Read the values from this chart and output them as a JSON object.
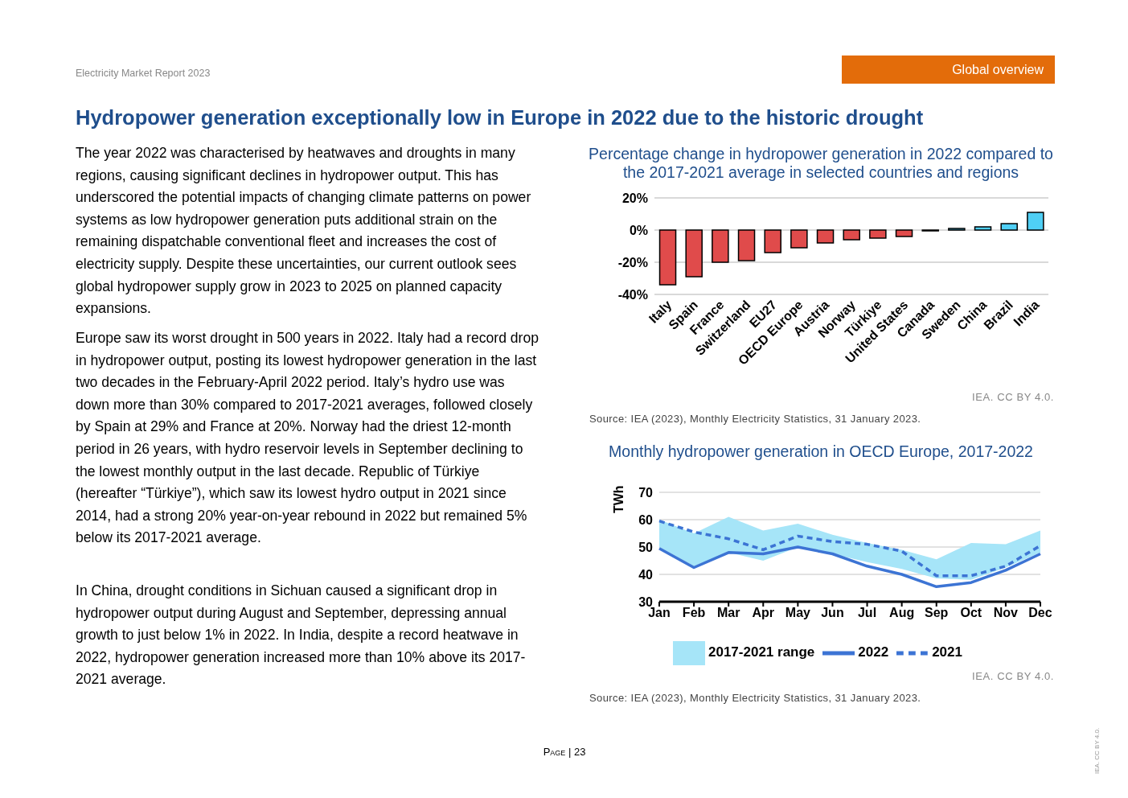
{
  "chart_data": [
    {
      "type": "other",
      "title": "Hydropower generation exceptionally low in Europe in 2022 due to the historic drought",
      "annotations": [
        "Electricity Market Report 2023",
        "Global overview",
        "The year 2022 was characterised by heatwaves and droughts in many regions, causing significant declines in hydropower output. This has underscored the potential impacts of changing climate patterns on power systems as low hydropower generation puts additional strain on the remaining dispatchable conventional fleet and increases the cost of electricity supply. Despite these uncertainties, our current outlook sees global hydropower supply grow in 2023 to 2025 on planned capacity expansions.",
        "Europe saw its worst drought in 500 years in 2022. Italy had a record drop in hydropower output, posting its lowest hydropower generation in the last two decades in the February-April 2022 period. Italy’s hydro use was down more than 30% compared to 2017-2021 averages, followed closely by Spain at 29% and France at 20%. Norway had the driest 12-month period in 26 years, with hydro reservoir levels in September declining to the lowest monthly output in the last decade. Republic of Türkiye (hereafter “Türkiye”), which saw its lowest hydro output in 2021 since 2014, had a strong 20% year-on-year rebound in 2022 but remained 5% below its 2017-2021 average.",
        "In China, drought conditions in Sichuan caused a significant drop in hydropower output during August and September, depressing annual growth to just below 1% in 2022. In India, despite a record heatwave in 2022, hydropower generation increased more than 10% above its 2017-2021 average.",
        "Page | 23",
        "IEA. CC BY 4.0."
      ]
    },
    {
      "type": "bar",
      "title": "Percentage change in hydropower generation in 2022 compared to the 2017-2021 average in selected countries and regions",
      "categories": [
        "Italy",
        "Spain",
        "France",
        "Switzerland",
        "EU27",
        "OECD Europe",
        "Austria",
        "Norway",
        "Türkiye",
        "United States",
        "Canada",
        "Sweden",
        "China",
        "Brazil",
        "India"
      ],
      "values": [
        -34,
        -29,
        -20,
        -19,
        -14,
        -11,
        -8,
        -6,
        -5,
        -4,
        -0.5,
        1,
        2,
        4,
        11
      ],
      "colors": [
        "#e04b4b",
        "#e04b4b",
        "#e04b4b",
        "#e04b4b",
        "#e04b4b",
        "#e04b4b",
        "#e04b4b",
        "#e04b4b",
        "#e04b4b",
        "#e04b4b",
        "#e04b4b",
        "#4fcff5",
        "#4fcff5",
        "#4fcff5",
        "#4fcff5"
      ],
      "ylim": [
        -40,
        20
      ],
      "yticks": [
        {
          "value": -40,
          "label": "-40%"
        },
        {
          "value": -20,
          "label": "-20%"
        },
        {
          "value": 0,
          "label": "0%"
        },
        {
          "value": 20,
          "label": "20%"
        }
      ],
      "grid": "y",
      "legend": false,
      "annotations": [
        "IEA. CC BY 4.0.",
        "Source: IEA (2023), Monthly Electricity Statistics, 31 January 2023."
      ]
    },
    {
      "type": "line",
      "title": "Monthly hydropower generation in OECD Europe, 2017-2022",
      "categories": [
        "Jan",
        "Feb",
        "Mar",
        "Apr",
        "May",
        "Jun",
        "Jul",
        "Aug",
        "Sep",
        "Oct",
        "Nov",
        "Dec"
      ],
      "ylabel": "TWh",
      "ylim": [
        30,
        70
      ],
      "yticks": [
        30,
        40,
        50,
        60,
        70
      ],
      "grid": "y",
      "legend": "bottom",
      "marker": "none",
      "series": [
        {
          "name": "2017-2021 range",
          "type": "area",
          "color": "#a6e5f8",
          "values": [
            null,
            null,
            null,
            null,
            null,
            null,
            null,
            null,
            null,
            null,
            null,
            null
          ],
          "lower": [
            50,
            43,
            48,
            45,
            50,
            47.5,
            44.5,
            42,
            38.5,
            38,
            42.5,
            48
          ],
          "upper": [
            60,
            55,
            61,
            56,
            58.5,
            54.5,
            51.5,
            49,
            45.5,
            51.5,
            51,
            56
          ]
        },
        {
          "name": "2022",
          "type": "line",
          "color": "#3c74d4",
          "line_style": "solid",
          "values": [
            49.5,
            42.5,
            48,
            47.5,
            50,
            47.5,
            43,
            40,
            35.5,
            37,
            41.5,
            47.5
          ]
        },
        {
          "name": "2021",
          "type": "line",
          "color": "#3c74d4",
          "line_style": "dashed",
          "values": [
            59.5,
            55.5,
            53,
            49,
            54,
            52,
            51,
            48.5,
            39.5,
            39.5,
            43,
            50.5
          ]
        }
      ],
      "annotations": [
        "IEA. CC BY 4.0.",
        "Source: IEA (2023), Monthly Electricity Statistics, 31 January 2023."
      ]
    }
  ]
}
